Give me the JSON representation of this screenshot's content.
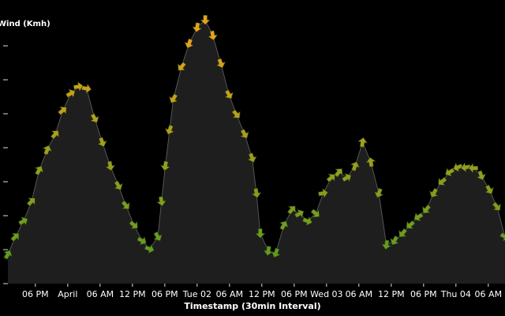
{
  "chart_data": {
    "type": "line",
    "title": "Wind (Kmh)",
    "x_label": "Timestamp (30min Interval)",
    "x": [
      -11.1,
      -9.7,
      -8.2,
      -6.7,
      -5.3,
      -3.8,
      -2.3,
      -0.9,
      0.6,
      2.0,
      3.5,
      5.0,
      6.4,
      7.9,
      9.4,
      10.8,
      12.3,
      13.8,
      15.2,
      16.7,
      17.4,
      18.1,
      18.9,
      19.6,
      21.1,
      22.5,
      24.0,
      25.5,
      26.9,
      28.4,
      29.9,
      31.3,
      32.8,
      34.2,
      35.0,
      35.7,
      37.2,
      38.6,
      40.1,
      41.6,
      43.0,
      44.5,
      46.0,
      47.4,
      48.9,
      50.3,
      51.8,
      53.3,
      54.7,
      56.2,
      57.7,
      59.1,
      60.6,
      62.1,
      63.5,
      65.0,
      66.5,
      67.9,
      69.4,
      70.8,
      72.3,
      73.8,
      75.2,
      76.7,
      78.2,
      79.6,
      81.1
    ],
    "values": [
      4.3,
      6.9,
      9.2,
      12.1,
      16.7,
      19.7,
      22,
      25.5,
      28,
      29,
      28.7,
      24.3,
      20.8,
      17.3,
      14.4,
      11.5,
      8.6,
      6.3,
      5.1,
      6.9,
      12.1,
      17.3,
      22.6,
      27.2,
      31.9,
      35.3,
      37.7,
      38.8,
      36.5,
      32.4,
      27.8,
      24.9,
      22,
      18.5,
      13.3,
      7.4,
      4.8,
      4.5,
      8.6,
      10.9,
      10.3,
      9.2,
      10.3,
      13.3,
      15.6,
      16.4,
      15.6,
      17.3,
      20.8,
      17.9,
      13.3,
      5.7,
      6.3,
      7.4,
      8.6,
      9.8,
      10.9,
      13.3,
      15,
      16.4,
      17.1,
      17.1,
      17,
      15.9,
      13.8,
      11.3,
      6.9
    ],
    "directions": [
      30,
      45,
      60,
      45,
      30,
      20,
      40,
      50,
      60,
      80,
      100,
      150,
      160,
      170,
      150,
      140,
      130,
      120,
      110,
      150,
      170,
      190,
      200,
      210,
      220,
      200,
      190,
      180,
      170,
      160,
      150,
      140,
      150,
      160,
      170,
      180,
      190,
      200,
      30,
      40,
      60,
      110,
      130,
      80,
      50,
      40,
      60,
      20,
      10,
      350,
      200,
      190,
      210,
      220,
      230,
      240,
      220,
      210,
      230,
      240,
      250,
      260,
      270,
      160,
      150,
      140,
      120
    ],
    "color_low": "#4c9a22",
    "color_high": "#e8a21a",
    "area_color": "#1e1e1e",
    "line_color": "#555555",
    "xlim": [
      -11.1,
      81.1
    ],
    "ylim": [
      0,
      40
    ],
    "yticks": [
      0,
      5,
      10,
      15,
      20,
      25,
      30,
      35
    ],
    "xticks": [
      {
        "value": -6,
        "label": "06 PM"
      },
      {
        "value": 0,
        "label": "April"
      },
      {
        "value": 6,
        "label": "06 AM"
      },
      {
        "value": 12,
        "label": "12 PM"
      },
      {
        "value": 18,
        "label": "06 PM"
      },
      {
        "value": 24,
        "label": "Tue 02"
      },
      {
        "value": 30,
        "label": "06 AM"
      },
      {
        "value": 36,
        "label": "12 PM"
      },
      {
        "value": 42,
        "label": "06 PM"
      },
      {
        "value": 48,
        "label": "Wed 03"
      },
      {
        "value": 54,
        "label": "06 AM"
      },
      {
        "value": 60,
        "label": "12 PM"
      },
      {
        "value": 66,
        "label": "06 PM"
      },
      {
        "value": 72,
        "label": "Thu 04"
      },
      {
        "value": 78,
        "label": "06 AM"
      }
    ]
  }
}
